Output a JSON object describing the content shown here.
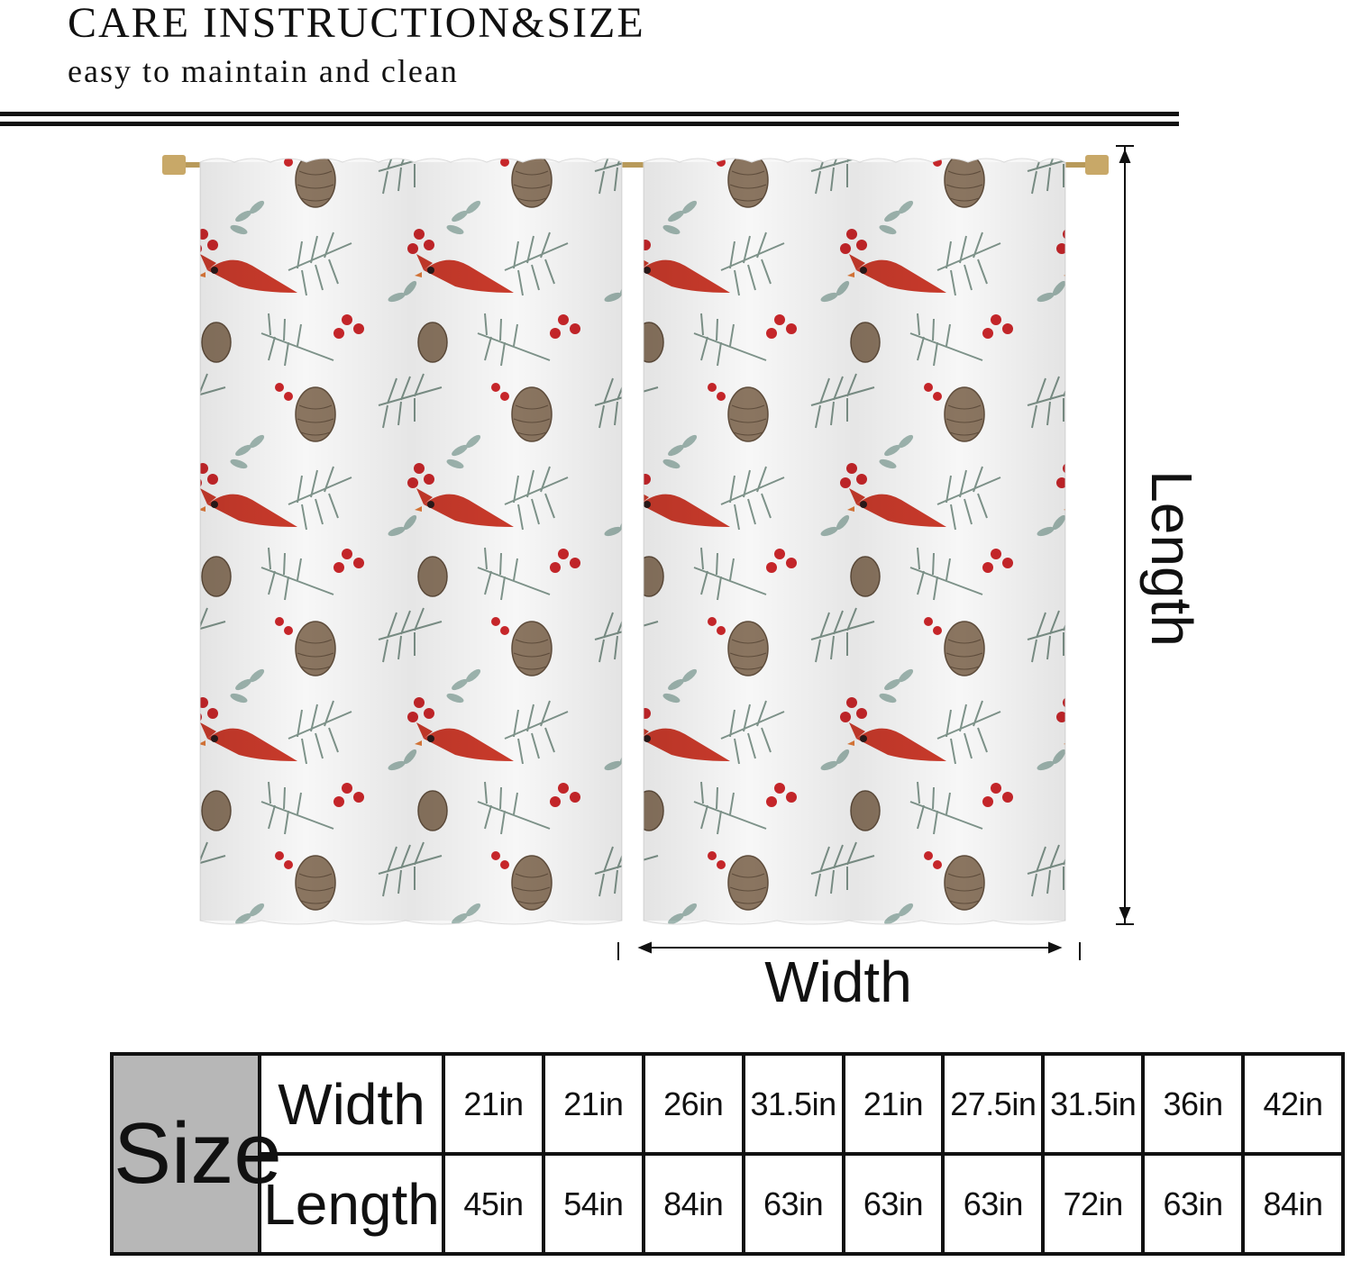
{
  "header": {
    "title": "CARE INSTRUCTION&SIZE",
    "subtitle": "easy to maintain and clean"
  },
  "diagram": {
    "length_label": "Length",
    "width_label": "Width"
  },
  "size_table": {
    "head": "Size",
    "rows": [
      {
        "label": "Width",
        "values": [
          "21in",
          "21in",
          "26in",
          "31.5in",
          "21in",
          "27.5in",
          "31.5in",
          "36in",
          "42in"
        ]
      },
      {
        "label": "Length",
        "values": [
          "45in",
          "54in",
          "84in",
          "63in",
          "63in",
          "63in",
          "72in",
          "63in",
          "84in"
        ]
      }
    ]
  },
  "colors": {
    "cardinal": "#c93a2b",
    "berry": "#c8262a",
    "pine": "#6f8a80",
    "cone": "#7a6550",
    "table_head_bg": "#b7b7b7"
  }
}
